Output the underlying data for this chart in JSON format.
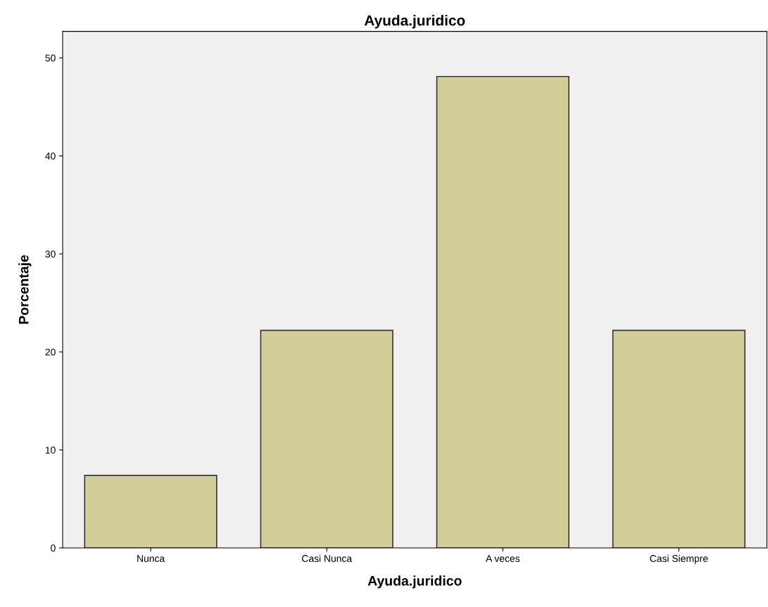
{
  "chart_data": {
    "type": "bar",
    "title": "Ayuda.juridico",
    "xlabel": "Ayuda.juridico",
    "ylabel": "Porcentaje",
    "categories": [
      "Nunca",
      "Casi Nunca",
      "A veces",
      "Casi Siempre"
    ],
    "values": [
      7.4,
      22.2,
      48.1,
      22.2
    ],
    "color": "#d3ce97",
    "ylim": [
      0,
      52.7
    ],
    "yticks": [
      0,
      10,
      20,
      30,
      40,
      50
    ],
    "grid": false,
    "legend": false
  }
}
